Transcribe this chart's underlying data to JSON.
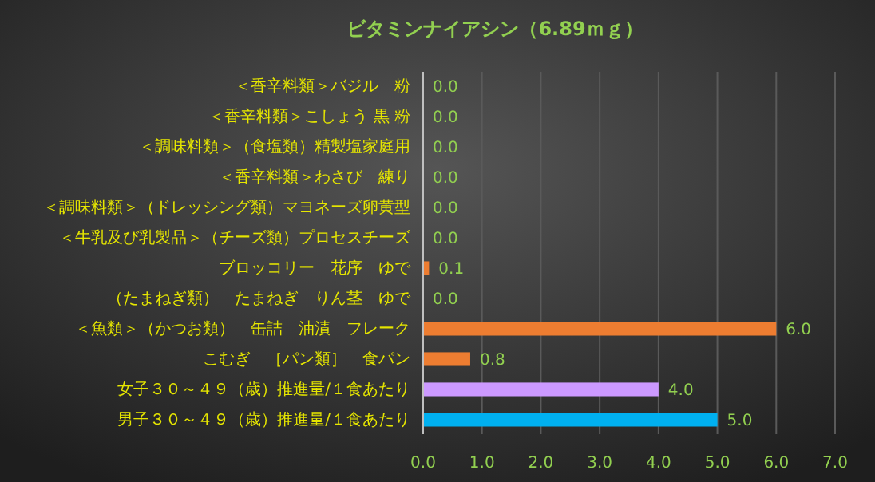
{
  "chart_data": {
    "type": "bar",
    "orientation": "horizontal",
    "title": "ビタミンナイアシン（6.89ｍｇ）",
    "categories": [
      "＜香辛料類＞バジル　粉",
      "＜香辛料類＞こしょう 黒 粉",
      "＜調味料類＞（食塩類）精製塩家庭用",
      "＜香辛料類＞わさび　練り",
      "＜調味料類＞（ドレッシング類）マヨネーズ卵黄型",
      "＜牛乳及び乳製品＞（チーズ類）プロセスチーズ",
      "ブロッコリー　花序　ゆで",
      "（たまねぎ類）　たまねぎ　りん茎　ゆで",
      "＜魚類＞（かつお類）　缶詰　油漬　フレーク",
      "こむぎ　［パン類］　食パン",
      "女子３０～４９（歳）推進量/１食あたり",
      "男子３０～４９（歳）推進量/１食あたり"
    ],
    "values": [
      0,
      0,
      0,
      0,
      0,
      0,
      0.1,
      0,
      6.0,
      0.8,
      4.0,
      5.0
    ],
    "value_labels": [
      "0.0",
      "0.0",
      "0.0",
      "0.0",
      "0.0",
      "0.0",
      "0.1",
      "0.0",
      "6.0",
      "0.8",
      "4.0",
      "5.0"
    ],
    "colors": [
      "#ed7d31",
      "#ed7d31",
      "#ed7d31",
      "#ed7d31",
      "#ed7d31",
      "#ed7d31",
      "#ed7d31",
      "#ed7d31",
      "#ed7d31",
      "#ed7d31",
      "#cc99ff",
      "#00b0f0"
    ],
    "xlim": [
      0,
      7
    ],
    "xticks": [
      {
        "value": 0,
        "label": "0.0"
      },
      {
        "value": 1,
        "label": "1.0"
      },
      {
        "value": 2,
        "label": "2.0"
      },
      {
        "value": 3,
        "label": "3.0"
      },
      {
        "value": 4,
        "label": "4.0"
      },
      {
        "value": 5,
        "label": "5.0"
      },
      {
        "value": 6,
        "label": "6.0"
      },
      {
        "value": 7,
        "label": "7.0"
      }
    ],
    "grid": "x"
  }
}
